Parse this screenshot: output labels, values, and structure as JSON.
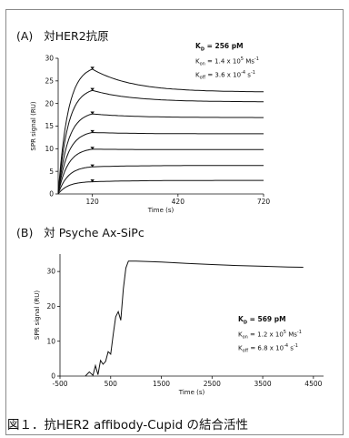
{
  "caption": "図１．抗HER2 affibody-Cupid の結合活性",
  "chart_data": [
    {
      "type": "line",
      "panel_label": "(A)",
      "title": "対HER2抗原",
      "xlabel": "Time (s)",
      "ylabel": "SPR signal (RU)",
      "xlim": [
        0,
        720
      ],
      "ylim": [
        0,
        30
      ],
      "xticks": [
        120,
        420,
        720
      ],
      "yticks": [
        0,
        5,
        10,
        15,
        20,
        25,
        30
      ],
      "kinetics": {
        "kd_sym": "K",
        "kd_sub": "D",
        "kd_val": " = 256 pM",
        "kon_sym": "K",
        "kon_sub": "on",
        "kon_val": " = 1.4 x 10",
        "kon_exp": "5",
        "kon_unit": " Ms",
        "kon_unit_exp": "-1",
        "koff_sym": "K",
        "koff_sub": "off",
        "koff_val": " = 3.6 x 10",
        "koff_exp": "-4",
        "koff_unit": " s",
        "koff_unit_exp": "-1"
      },
      "injection_end": 120,
      "series": [
        {
          "peak": 27.6,
          "end": 22.6
        },
        {
          "peak": 22.9,
          "end": 20.4
        },
        {
          "peak": 17.7,
          "end": 16.9
        },
        {
          "peak": 13.6,
          "end": 13.3
        },
        {
          "peak": 9.9,
          "end": 9.8
        },
        {
          "peak": 6.0,
          "end": 6.3
        },
        {
          "peak": 2.7,
          "end": 3.0
        }
      ]
    },
    {
      "type": "line",
      "panel_label": "(B)",
      "title": "対 Psyche Ax-SiPc",
      "xlabel": "Time (s)",
      "ylabel": "SPR signal (RU)",
      "xlim": [
        -500,
        4700
      ],
      "ylim": [
        0,
        35
      ],
      "xticks": [
        -500,
        500,
        1500,
        2500,
        3500,
        4500
      ],
      "yticks": [
        0,
        10,
        20,
        30
      ],
      "kinetics": {
        "kd_sym": "K",
        "kd_sub": "D",
        "kd_val": " = 569 pM",
        "kon_sym": "K",
        "kon_sub": "on",
        "kon_val": " = 1.2 x 10",
        "kon_exp": "5",
        "kon_unit": " Ms",
        "kon_unit_exp": "-1",
        "koff_sym": "K",
        "koff_sub": "off",
        "koff_val": " = 6.8 x 10",
        "koff_exp": "-4",
        "koff_unit": " s",
        "koff_unit_exp": "-1"
      },
      "x": [
        0,
        80,
        150,
        200,
        250,
        300,
        350,
        400,
        450,
        500,
        550,
        600,
        650,
        700,
        750,
        800,
        850,
        1000,
        1500,
        2000,
        2500,
        3000,
        3500,
        4000,
        4300
      ],
      "y": [
        0,
        1.2,
        0.2,
        3.0,
        0.4,
        4.5,
        3.4,
        4.2,
        7.0,
        6.3,
        12.0,
        17.0,
        18.5,
        16.0,
        25.0,
        31.0,
        33.0,
        33.0,
        32.7,
        32.3,
        32.0,
        31.7,
        31.5,
        31.3,
        31.2
      ]
    }
  ]
}
